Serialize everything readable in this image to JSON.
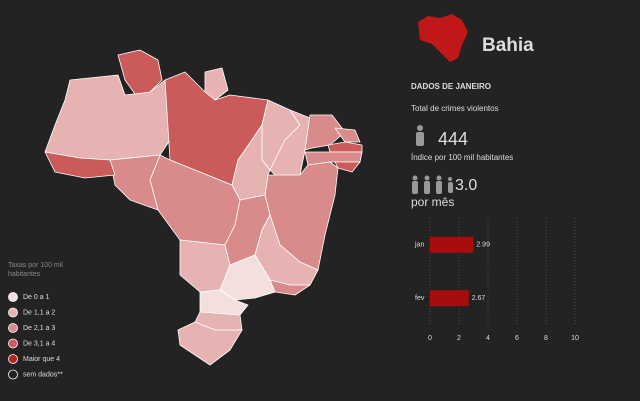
{
  "header": {
    "title": "Bahia",
    "section": "DADOS DE JANEIRO"
  },
  "stats": {
    "total_label": "Total de crimes violentos",
    "total_value": "444",
    "index_label": "Índice por 100 mil habitantes",
    "index_value": "3.0",
    "index_unit": "por mês"
  },
  "chart_data": {
    "type": "bar",
    "orientation": "horizontal",
    "categories": [
      "jan",
      "fev"
    ],
    "values": [
      2.99,
      2.67
    ],
    "color": "#a80d0d",
    "xlim": [
      0,
      10
    ],
    "xticks": [
      0,
      2,
      4,
      6,
      8,
      10
    ],
    "grid": true
  },
  "legend": {
    "title": "Taxas por 100 mil habitantes",
    "items": [
      {
        "label": "De 0 a 1",
        "color": "#f4dfdf"
      },
      {
        "label": "De 1,1 a 2",
        "color": "#e6b2b2"
      },
      {
        "label": "De 2,1 a 3",
        "color": "#d98a8a"
      },
      {
        "label": "De 3,1 a 4",
        "color": "#cb5a5a"
      },
      {
        "label": "Maior que 4",
        "color": "#b82525"
      },
      {
        "label": "sem dados**",
        "color": "#222222"
      }
    ]
  }
}
